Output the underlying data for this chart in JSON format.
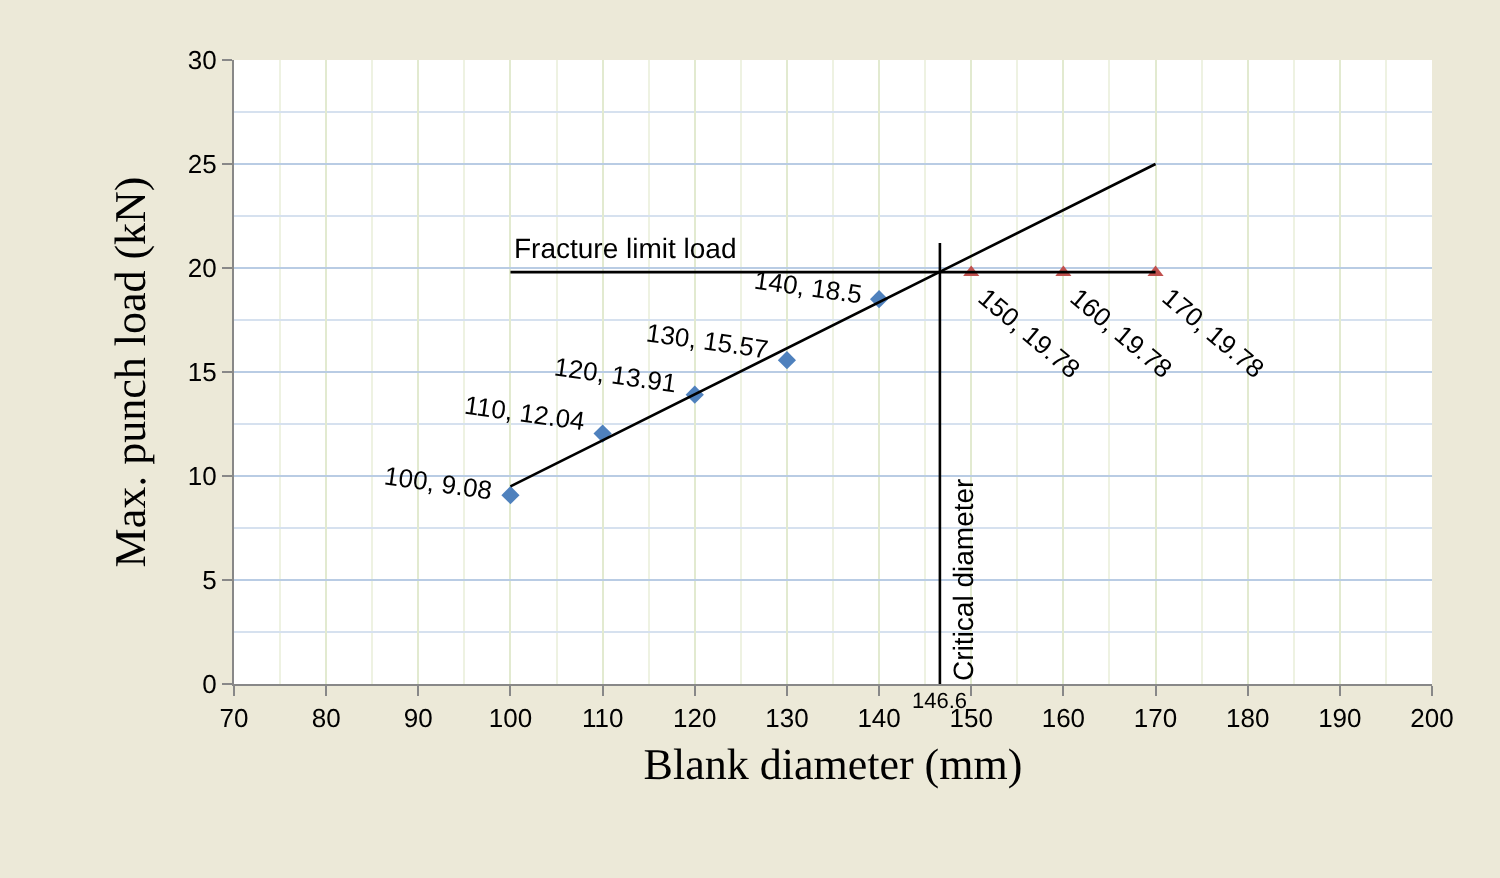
{
  "chart_data": {
    "type": "scatter",
    "xlabel": "Blank diameter (mm)",
    "ylabel": "Max. punch load (kN)",
    "xlim": [
      70,
      200
    ],
    "xticks": [
      70,
      80,
      90,
      100,
      110,
      120,
      130,
      140,
      150,
      160,
      170,
      180,
      190,
      200
    ],
    "ylim": [
      0,
      30
    ],
    "yticks": [
      0,
      5,
      10,
      15,
      20,
      25,
      30
    ],
    "grid": true,
    "series": [
      {
        "type": "scatter",
        "color": "#4f81bd",
        "marker": "diamond",
        "x": [
          100,
          110,
          120,
          130,
          140
        ],
        "values": [
          9.08,
          12.04,
          13.91,
          15.57,
          18.5
        ],
        "value_labels": [
          "100, 9.08",
          "110, 12.04",
          "120, 13.91",
          "130, 15.57",
          "140, 18.5"
        ]
      },
      {
        "type": "scatter",
        "color": "#c0504d",
        "marker": "triangle",
        "x": [
          150,
          160,
          170
        ],
        "values": [
          19.78,
          19.78,
          19.78
        ],
        "value_labels": [
          "150, 19.78",
          "160, 19.78",
          "170, 19.78"
        ]
      },
      {
        "type": "line",
        "color": "#000000",
        "x": [
          100,
          170
        ],
        "values": [
          9.5,
          25
        ]
      },
      {
        "type": "line",
        "name": "Fracture limit load",
        "color": "#000000",
        "x": [
          100,
          170
        ],
        "values": [
          19.8,
          19.8
        ]
      },
      {
        "type": "line",
        "name": "Critical diameter",
        "color": "#000000",
        "x": [
          146.6,
          146.6
        ],
        "values": [
          0,
          21.2
        ]
      }
    ],
    "annotations": [
      {
        "text": "146.6",
        "x": 146.6,
        "y": 0
      }
    ]
  }
}
